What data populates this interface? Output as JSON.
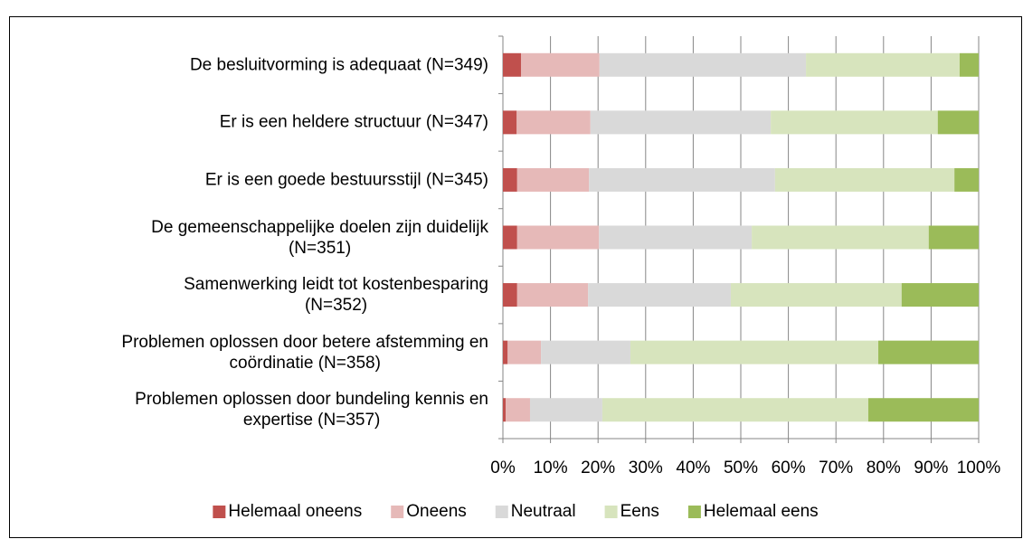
{
  "chart_data": {
    "type": "stacked_barh",
    "categories": [
      "De besluitvorming is adequaat (N=349)",
      "Er is een heldere structuur (N=347)",
      "Er is een goede bestuursstijl (N=345)",
      "De gemeenschappelijke doelen zijn duidelijk\n(N=351)",
      "Samenwerking leidt tot kostenbesparing\n(N=352)",
      "Problemen oplossen door betere afstemming en\ncoördinatie (N=358)",
      "Problemen oplossen door bundeling kennis en\nexpertise (N=357)"
    ],
    "series": [
      {
        "name": "Helemaal oneens",
        "color": "#c0504d",
        "values": [
          3.8,
          2.9,
          3.0,
          3.0,
          3.0,
          1.0,
          0.6
        ]
      },
      {
        "name": "Oneens",
        "color": "#e6b9b8",
        "values": [
          16.5,
          15.5,
          15.1,
          17.2,
          14.9,
          7.0,
          5.1
        ]
      },
      {
        "name": "Neutraal",
        "color": "#d9d9d9",
        "values": [
          43.4,
          37.9,
          39.1,
          32.1,
          30.0,
          18.8,
          15.2
        ]
      },
      {
        "name": "Eens",
        "color": "#d7e4bd",
        "values": [
          32.3,
          35.1,
          37.7,
          37.2,
          35.9,
          52.1,
          55.9
        ]
      },
      {
        "name": "Helemaal eens",
        "color": "#9bbb59",
        "values": [
          4.0,
          8.6,
          5.1,
          10.5,
          16.2,
          21.1,
          23.2
        ]
      }
    ],
    "xlim": [
      0,
      100
    ],
    "xticks": [
      {
        "value": 0,
        "label": "0%"
      },
      {
        "value": 10,
        "label": "10%"
      },
      {
        "value": 20,
        "label": "20%"
      },
      {
        "value": 30,
        "label": "30%"
      },
      {
        "value": 40,
        "label": "40%"
      },
      {
        "value": 50,
        "label": "50%"
      },
      {
        "value": 60,
        "label": "60%"
      },
      {
        "value": 70,
        "label": "70%"
      },
      {
        "value": 80,
        "label": "80%"
      },
      {
        "value": 90,
        "label": "90%"
      },
      {
        "value": 100,
        "label": "100%"
      }
    ],
    "grid": true,
    "legend": "bottom"
  }
}
